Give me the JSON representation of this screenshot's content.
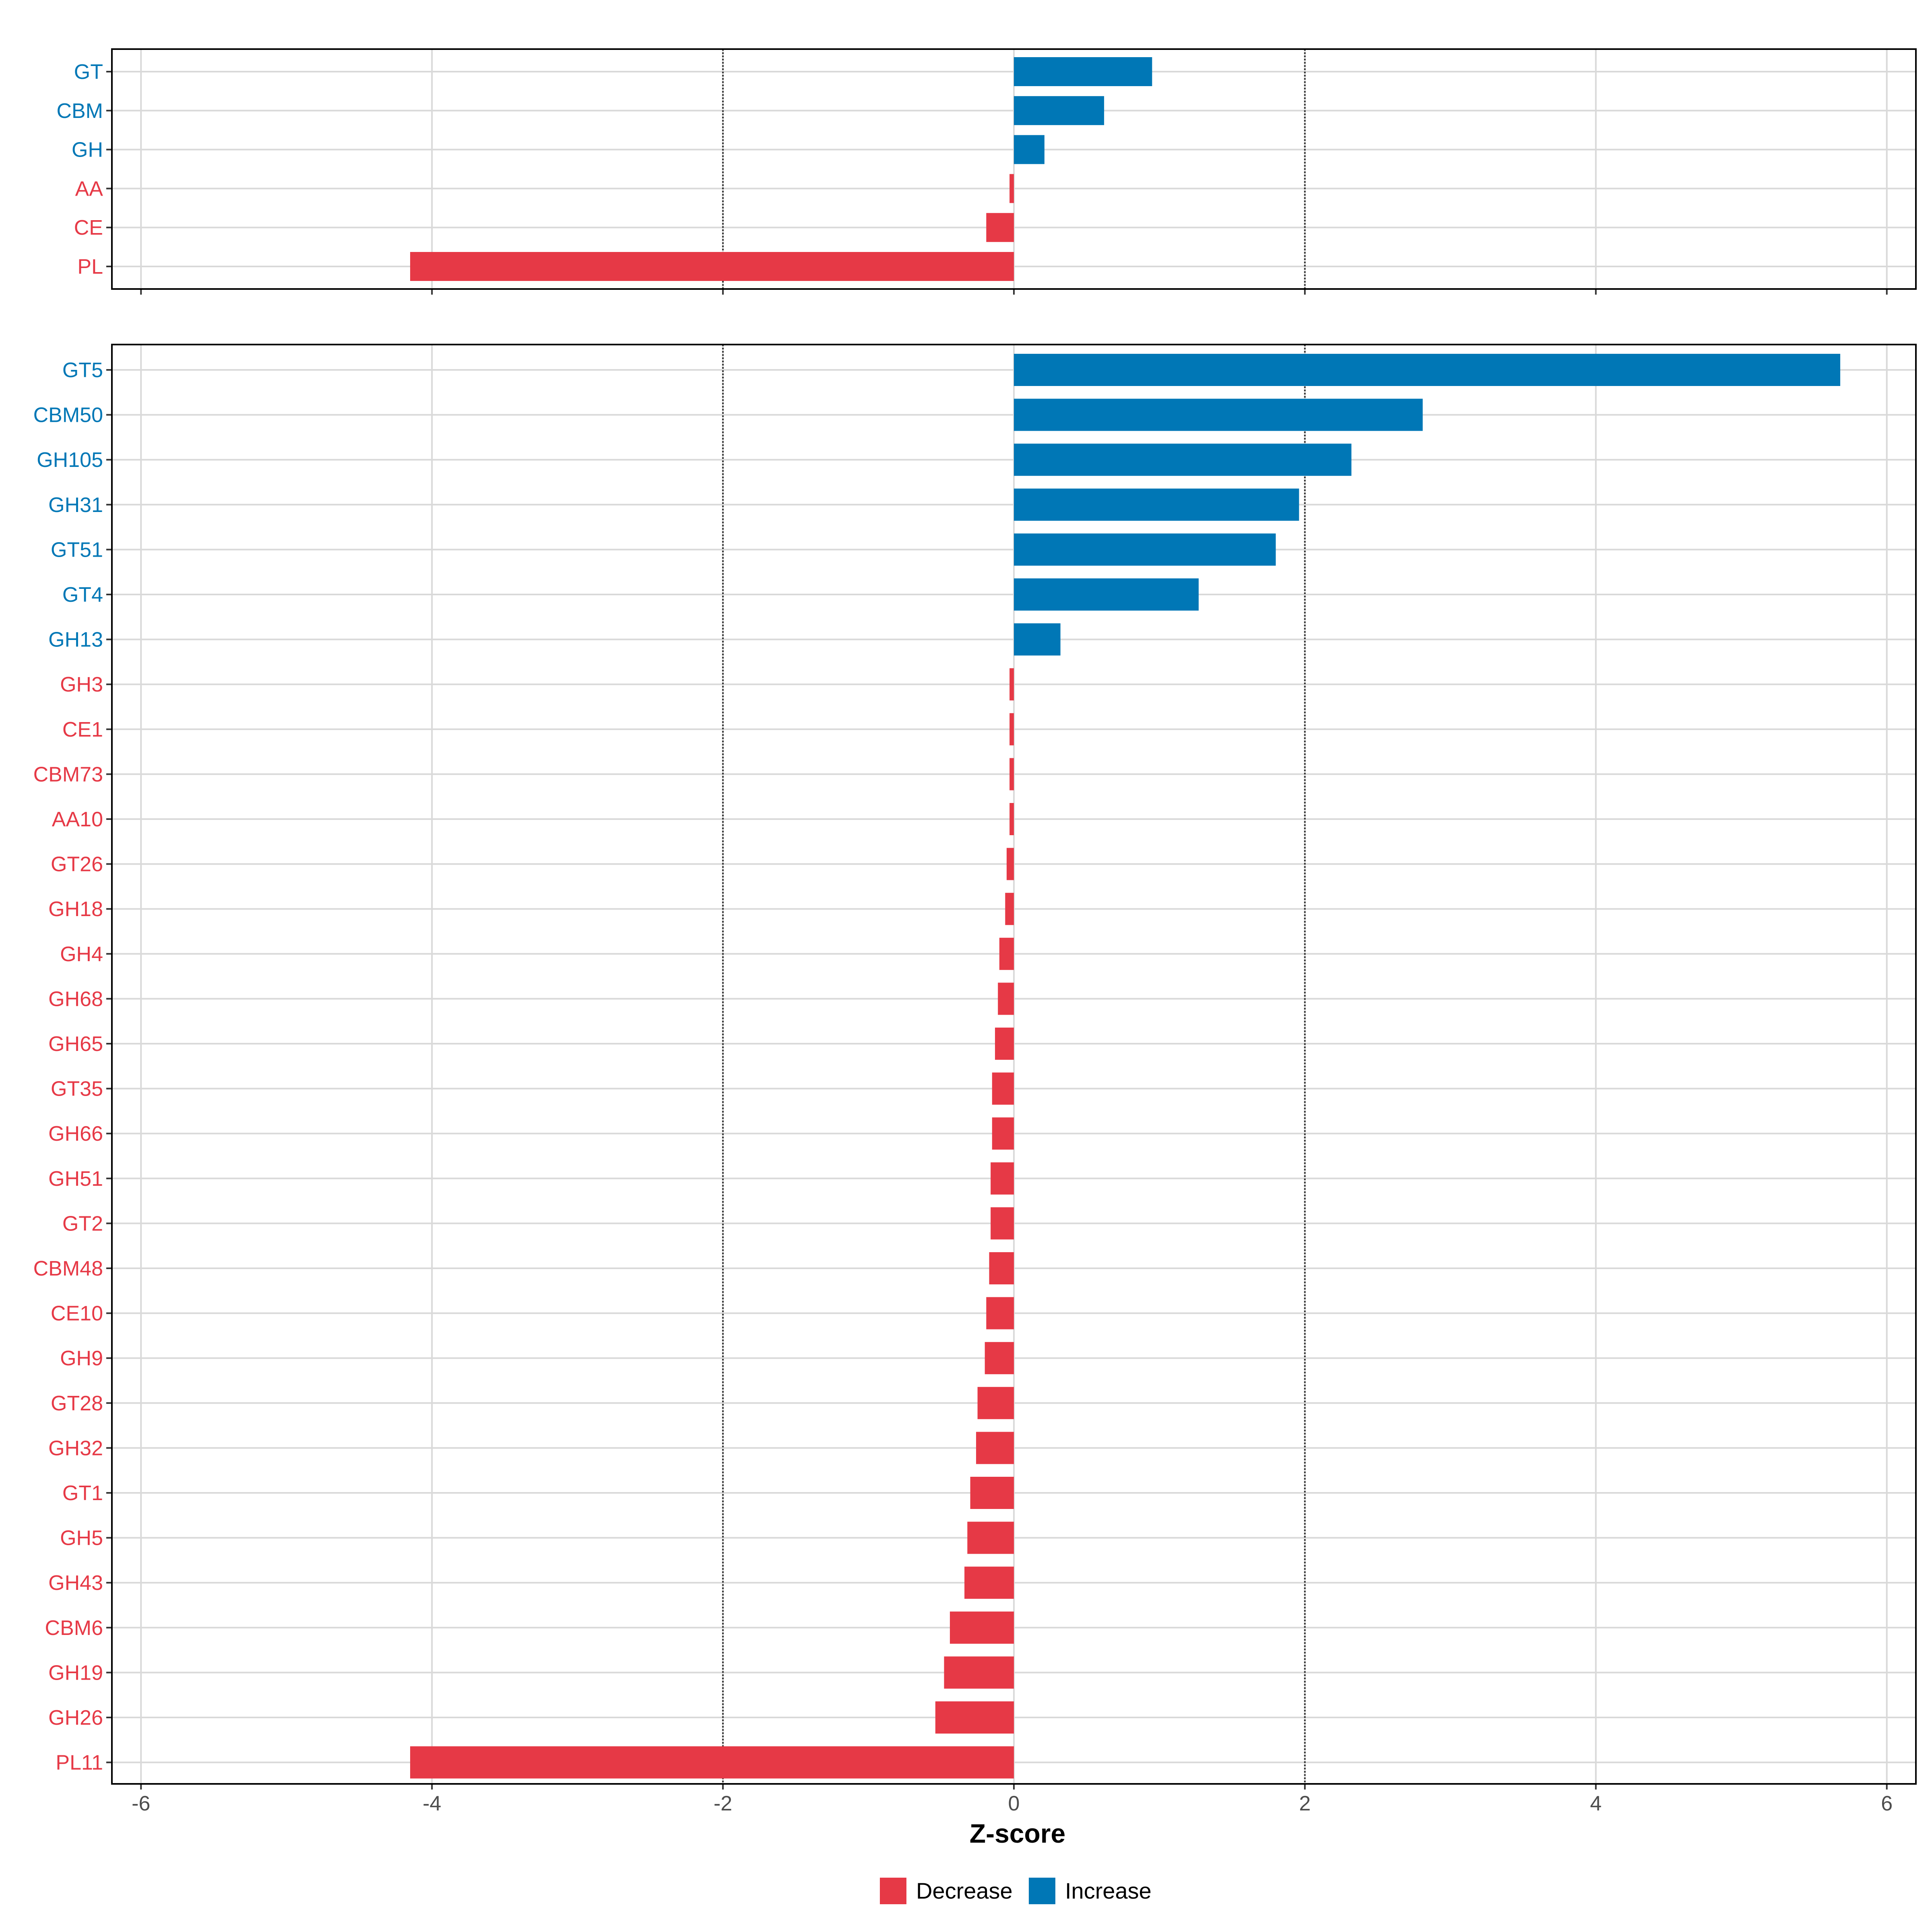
{
  "colors": {
    "decrease": "#E63946",
    "increase": "#0077B6",
    "grid": "#D9D9D9",
    "threshold": "#333333",
    "border": "#000000"
  },
  "chart_data": [
    {
      "type": "bar",
      "orientation": "horizontal",
      "title": "",
      "xlabel": "Z-score",
      "ylabel": "",
      "xlim": [
        -6.2,
        6.2
      ],
      "xticks": [
        -6,
        -4,
        -2,
        0,
        2,
        4,
        6
      ],
      "threshold_lines": [
        -2,
        2
      ],
      "categories": [
        "GT",
        "CBM",
        "GH",
        "AA",
        "CE",
        "PL"
      ],
      "values": [
        0.95,
        0.62,
        0.21,
        -0.03,
        -0.19,
        -4.15
      ],
      "groups": [
        "Increase",
        "Increase",
        "Increase",
        "Decrease",
        "Decrease",
        "Decrease"
      ]
    },
    {
      "type": "bar",
      "orientation": "horizontal",
      "title": "",
      "xlabel": "Z-score",
      "ylabel": "",
      "xlim": [
        -6.2,
        6.2
      ],
      "xticks": [
        -6,
        -4,
        -2,
        0,
        2,
        4,
        6
      ],
      "xtick_labels": [
        "-6",
        "-4",
        "-2",
        "0",
        "2",
        "4",
        "6"
      ],
      "threshold_lines": [
        -2,
        2
      ],
      "categories": [
        "GT5",
        "CBM50",
        "GH105",
        "GH31",
        "GT51",
        "GT4",
        "GH13",
        "GH3",
        "CE1",
        "CBM73",
        "AA10",
        "GT26",
        "GH18",
        "GH4",
        "GH68",
        "GH65",
        "GT35",
        "GH66",
        "GH51",
        "GT2",
        "CBM48",
        "CE10",
        "GH9",
        "GT28",
        "GH32",
        "GT1",
        "GH5",
        "GH43",
        "CBM6",
        "GH19",
        "GH26",
        "PL11"
      ],
      "values": [
        5.68,
        2.81,
        2.32,
        1.96,
        1.8,
        1.27,
        0.32,
        -0.03,
        -0.03,
        -0.03,
        -0.03,
        -0.05,
        -0.06,
        -0.1,
        -0.11,
        -0.13,
        -0.15,
        -0.15,
        -0.16,
        -0.16,
        -0.17,
        -0.19,
        -0.2,
        -0.25,
        -0.26,
        -0.3,
        -0.32,
        -0.34,
        -0.44,
        -0.48,
        -0.54,
        -4.15
      ],
      "groups": [
        "Increase",
        "Increase",
        "Increase",
        "Increase",
        "Increase",
        "Increase",
        "Increase",
        "Decrease",
        "Decrease",
        "Decrease",
        "Decrease",
        "Decrease",
        "Decrease",
        "Decrease",
        "Decrease",
        "Decrease",
        "Decrease",
        "Decrease",
        "Decrease",
        "Decrease",
        "Decrease",
        "Decrease",
        "Decrease",
        "Decrease",
        "Decrease",
        "Decrease",
        "Decrease",
        "Decrease",
        "Decrease",
        "Decrease",
        "Decrease",
        "Decrease"
      ]
    }
  ],
  "legend": {
    "items": [
      {
        "label": "Decrease",
        "group": "Decrease"
      },
      {
        "label": "Increase",
        "group": "Increase"
      }
    ]
  }
}
